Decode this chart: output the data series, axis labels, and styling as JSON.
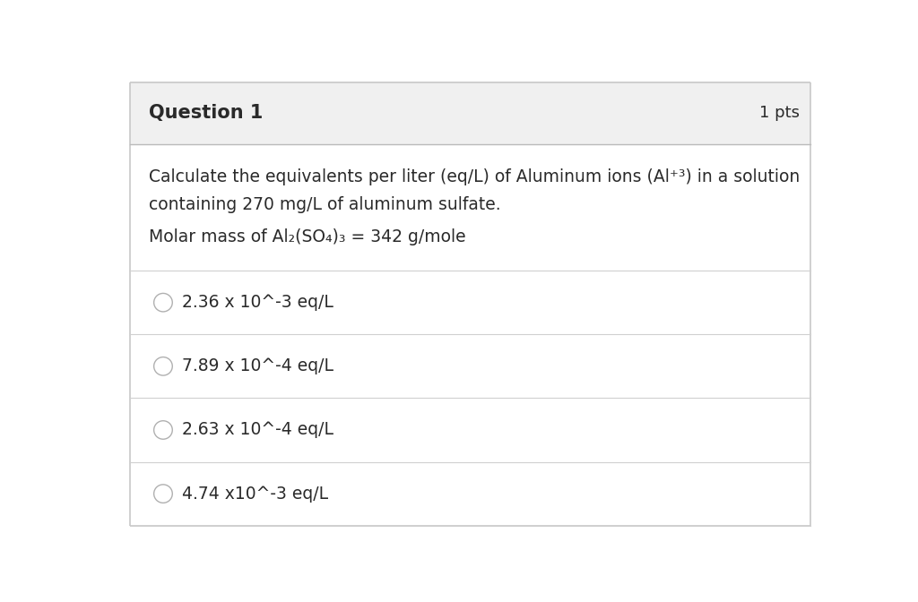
{
  "title": "Question 1",
  "pts": "1 pts",
  "header_bg": "#f0f0f0",
  "body_bg": "#ffffff",
  "border_color": "#c8c8c8",
  "header_border_color": "#bbbbbb",
  "title_fontsize": 15,
  "pts_fontsize": 13,
  "question_line1": "Calculate the equivalents per liter (eq/L) of Aluminum ions (Al⁺³) in a solution",
  "question_line2": "containing 270 mg/L of aluminum sulfate.",
  "molar_mass_line": "Molar mass of Al₂(SO₄)₃ = 342 g/mole",
  "choices": [
    "2.36 x 10^-3 eq/L",
    "7.89 x 10^-4 eq/L",
    "2.63 x 10^-4 eq/L",
    "4.74 x10^-3 eq/L"
  ],
  "text_color": "#2a2a2a",
  "divider_color": "#d0d0d0",
  "circle_color": "#b0b0b0",
  "body_fontsize": 13.5,
  "choice_fontsize": 13.5,
  "fig_width": 10.24,
  "fig_height": 6.72,
  "dpi": 100
}
